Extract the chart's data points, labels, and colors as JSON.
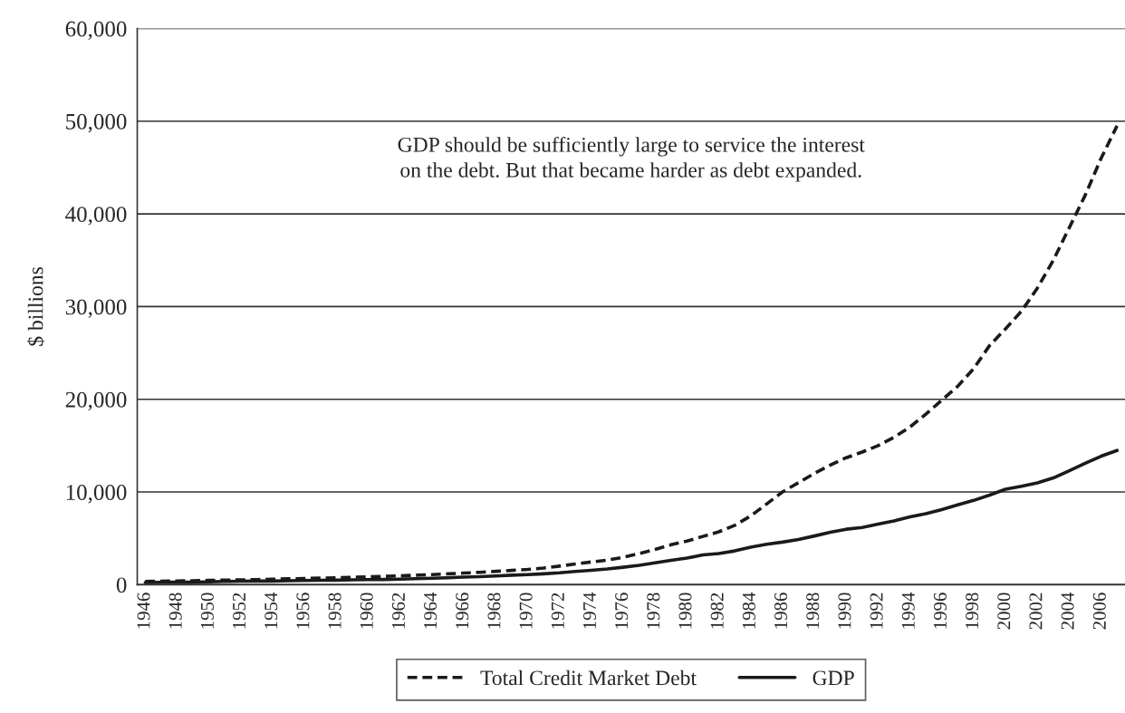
{
  "chart_data": {
    "type": "line",
    "ylabel": "$ billions",
    "categories": [
      "1946",
      null,
      "1948",
      null,
      "1950",
      null,
      "1952",
      null,
      "1954",
      null,
      "1956",
      null,
      "1958",
      null,
      "1960",
      null,
      "1962",
      null,
      "1964",
      null,
      "1966",
      null,
      "1968",
      null,
      "1970",
      null,
      "1972",
      null,
      "1974",
      null,
      "1976",
      null,
      "1978",
      null,
      "1980",
      null,
      "1982",
      null,
      "1984",
      null,
      "1986",
      null,
      "1988",
      null,
      "1990",
      null,
      "1992",
      null,
      "1994",
      null,
      "1996",
      null,
      "1998",
      null,
      "2000",
      null,
      "2002",
      null,
      "2004",
      null,
      "2006",
      null
    ],
    "series": [
      {
        "name": "Total Credit Market Debt",
        "color": "#1a1a1a",
        "line_style": "dashed",
        "values": [
          350,
          380,
          400,
          420,
          460,
          490,
          520,
          550,
          580,
          630,
          660,
          700,
          740,
          800,
          840,
          890,
          950,
          1020,
          1090,
          1170,
          1250,
          1330,
          1440,
          1540,
          1640,
          1800,
          2000,
          2230,
          2450,
          2650,
          2950,
          3350,
          3800,
          4300,
          4700,
          5200,
          5700,
          6400,
          7400,
          8700,
          10000,
          11000,
          12000,
          12900,
          13700,
          14300,
          15000,
          15900,
          17000,
          18400,
          19900,
          21400,
          23300,
          25800,
          27600,
          29500,
          32000,
          35000,
          38500,
          42000,
          46000,
          49500
        ]
      },
      {
        "name": "GDP",
        "color": "#1a1a1a",
        "line_style": "solid",
        "values": [
          230,
          250,
          270,
          270,
          300,
          350,
          370,
          390,
          390,
          430,
          450,
          470,
          480,
          520,
          540,
          560,
          600,
          640,
          690,
          740,
          820,
          860,
          940,
          1020,
          1080,
          1170,
          1280,
          1430,
          1550,
          1690,
          1880,
          2090,
          2360,
          2630,
          2860,
          3210,
          3350,
          3640,
          4040,
          4350,
          4590,
          4870,
          5250,
          5660,
          5980,
          6170,
          6540,
          6880,
          7310,
          7660,
          8100,
          8610,
          9090,
          9660,
          10290,
          10620,
          10980,
          11510,
          12280,
          13090,
          13860,
          14480
        ]
      }
    ],
    "ylim": [
      0,
      60000
    ],
    "yticks": [
      0,
      {
        "value": 10000,
        "label": "10,000"
      },
      {
        "value": 20000,
        "label": "20,000"
      },
      {
        "value": 30000,
        "label": "30,000"
      },
      {
        "value": 40000,
        "label": "40,000"
      },
      {
        "value": 50000,
        "label": "50,000"
      },
      {
        "value": 60000,
        "label": "60,000"
      }
    ],
    "grid": "y",
    "legend": "bottom",
    "marker": "none",
    "annotations": [
      "GDP should be sufficiently large to service the interest\non the debt. But that became harder as debt expanded."
    ]
  }
}
